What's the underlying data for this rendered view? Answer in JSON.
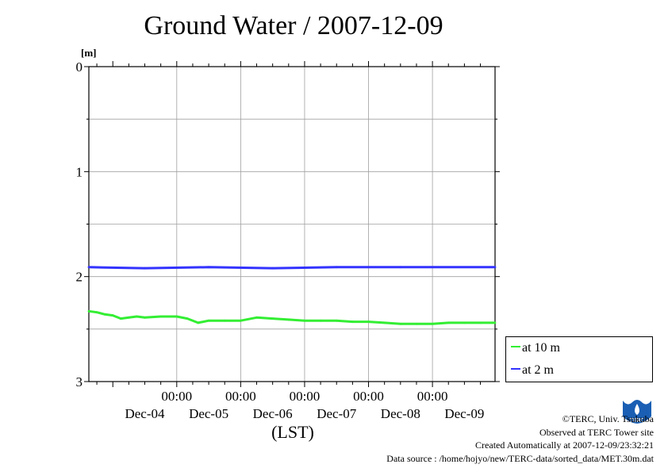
{
  "title": "Ground Water / 2007-12-09",
  "chart_data": {
    "type": "line",
    "title": "Ground Water / 2007-12-09",
    "yunit": "[m]",
    "xlabel": "(LST)",
    "ylim": [
      0,
      3
    ],
    "y_inverted": true,
    "yticks": [
      "0",
      "1",
      "2",
      "3"
    ],
    "x_time_ticks": [
      "00:00",
      "00:00",
      "00:00",
      "00:00",
      "00:00"
    ],
    "x_date_labels": [
      "Dec-04",
      "Dec-05",
      "Dec-06",
      "Dec-07",
      "Dec-08",
      "Dec-09"
    ],
    "xlim": [
      "2007-12-03T15:00",
      "2007-12-09T23:30"
    ],
    "grid": true,
    "legend_position": "bottom-right outside",
    "series": [
      {
        "name": "at 10 m",
        "color": "#33ee33",
        "x": [
          "2007-12-03T15:00",
          "2007-12-03T18:00",
          "2007-12-03T21:00",
          "2007-12-04T00:00",
          "2007-12-04T03:00",
          "2007-12-04T06:00",
          "2007-12-04T09:00",
          "2007-12-04T12:00",
          "2007-12-04T18:00",
          "2007-12-05T00:00",
          "2007-12-05T04:00",
          "2007-12-05T08:00",
          "2007-12-05T12:00",
          "2007-12-05T18:00",
          "2007-12-06T00:00",
          "2007-12-06T06:00",
          "2007-12-06T12:00",
          "2007-12-06T18:00",
          "2007-12-07T00:00",
          "2007-12-07T06:00",
          "2007-12-07T12:00",
          "2007-12-07T18:00",
          "2007-12-08T00:00",
          "2007-12-08T06:00",
          "2007-12-08T12:00",
          "2007-12-08T18:00",
          "2007-12-09T00:00",
          "2007-12-09T06:00",
          "2007-12-09T12:00",
          "2007-12-09T18:00",
          "2007-12-09T23:30"
        ],
        "y": [
          2.33,
          2.34,
          2.36,
          2.37,
          2.4,
          2.39,
          2.38,
          2.39,
          2.38,
          2.38,
          2.4,
          2.44,
          2.42,
          2.42,
          2.42,
          2.39,
          2.4,
          2.41,
          2.42,
          2.42,
          2.42,
          2.43,
          2.43,
          2.44,
          2.45,
          2.45,
          2.45,
          2.44,
          2.44,
          2.44,
          2.44
        ]
      },
      {
        "name": "at 2 m",
        "color": "#3333ff",
        "x": [
          "2007-12-03T15:00",
          "2007-12-04T12:00",
          "2007-12-05T12:00",
          "2007-12-06T12:00",
          "2007-12-07T12:00",
          "2007-12-08T12:00",
          "2007-12-09T23:30"
        ],
        "y": [
          1.91,
          1.92,
          1.91,
          1.92,
          1.91,
          1.91,
          1.91
        ]
      }
    ]
  },
  "credits": {
    "copyright": "©TERC, Univ. Tsukuba",
    "site": "Observed at TERC Tower site",
    "created": "Created Automatically at 2007-12-09/23:32:21",
    "source": "Data source : /home/hojyo/new/TERC-data/sorted_data/MET.30m.dat"
  },
  "logo": {
    "text": "TERC",
    "color": "#1a5fb4"
  }
}
